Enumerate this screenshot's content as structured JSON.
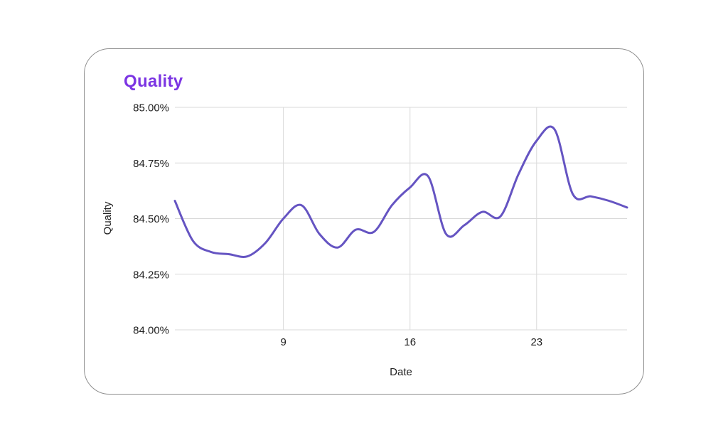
{
  "card": {
    "title": "Quality"
  },
  "colors": {
    "title_text": "#7c35e3",
    "line": "#6554c2",
    "grid": "#d9d9d9",
    "axis_text": "#212121",
    "card_border": "#8f8f8f",
    "background": "#ffffff"
  },
  "chart_data": {
    "type": "line",
    "title": "Quality",
    "xlabel": "Date",
    "ylabel": "Quality",
    "x": [
      3,
      4,
      5,
      6,
      7,
      8,
      9,
      10,
      11,
      12,
      13,
      14,
      15,
      16,
      17,
      18,
      19,
      20,
      21,
      22,
      23,
      24,
      25,
      26,
      27,
      28
    ],
    "values": [
      84.58,
      84.4,
      84.35,
      84.34,
      84.33,
      84.39,
      84.5,
      84.56,
      84.43,
      84.37,
      84.45,
      84.44,
      84.56,
      84.64,
      84.69,
      84.43,
      84.47,
      84.53,
      84.51,
      84.7,
      84.85,
      84.9,
      84.61,
      84.6,
      84.58,
      84.55
    ],
    "xlim": [
      3,
      28
    ],
    "ylim": [
      84.0,
      85.0
    ],
    "x_ticks": [
      9,
      16,
      23
    ],
    "x_tick_labels": [
      "9",
      "16",
      "23"
    ],
    "y_ticks": [
      85.0,
      84.75,
      84.5,
      84.25,
      84.0
    ],
    "y_tick_labels": [
      "85.00%",
      "84.75%",
      "84.50%",
      "84.25%",
      "84.00%"
    ],
    "grid": true,
    "legend": false,
    "series_name": "Quality"
  }
}
